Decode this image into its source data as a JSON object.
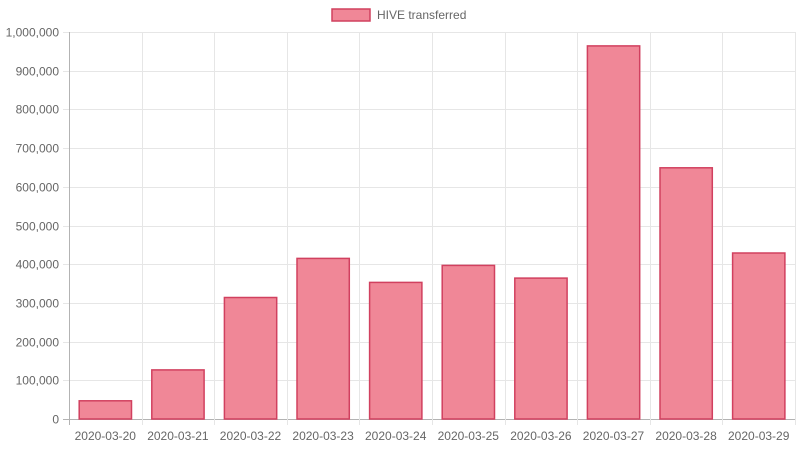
{
  "chart_data": {
    "type": "bar",
    "categories": [
      "2020-03-20",
      "2020-03-21",
      "2020-03-22",
      "2020-03-23",
      "2020-03-24",
      "2020-03-25",
      "2020-03-26",
      "2020-03-27",
      "2020-03-28",
      "2020-03-29"
    ],
    "series": [
      {
        "name": "HIVE transferred",
        "values": [
          47000,
          127000,
          314000,
          415000,
          353000,
          397000,
          364000,
          964000,
          649000,
          429000
        ]
      }
    ],
    "ylim": [
      0,
      1000000
    ],
    "yticks": [
      "0",
      "100,000",
      "200,000",
      "300,000",
      "400,000",
      "500,000",
      "600,000",
      "700,000",
      "800,000",
      "900,000",
      "1,000,000"
    ],
    "ytick_values": [
      0,
      100000,
      200000,
      300000,
      400000,
      500000,
      600000,
      700000,
      800000,
      900000,
      1000000
    ],
    "grid": true,
    "legend_position": "top-center",
    "colors": {
      "bar_fill": "#f08797",
      "bar_stroke": "#d1405f",
      "grid": "#e6e6e6",
      "axis_text": "#666666"
    }
  }
}
